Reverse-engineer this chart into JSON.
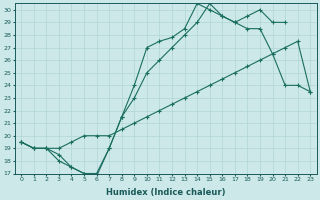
{
  "title": "",
  "xlabel": "Humidex (Indice chaleur)",
  "ylabel": "",
  "bg_color": "#cce8e8",
  "line_color": "#1a6e60",
  "grid_color": "#b0d4d4",
  "xlim": [
    -0.5,
    23.5
  ],
  "ylim": [
    17,
    30.5
  ],
  "yticks": [
    17,
    18,
    19,
    20,
    21,
    22,
    23,
    24,
    25,
    26,
    27,
    28,
    29,
    30
  ],
  "xticks": [
    0,
    1,
    2,
    3,
    4,
    5,
    6,
    7,
    8,
    9,
    10,
    11,
    12,
    13,
    14,
    15,
    16,
    17,
    18,
    19,
    20,
    21,
    22,
    23
  ],
  "line1_x": [
    0,
    1,
    2,
    3,
    4,
    5,
    6,
    7,
    8,
    9,
    10,
    11,
    12,
    13,
    14,
    15,
    16,
    17,
    18,
    19,
    20,
    21
  ],
  "line1_y": [
    19.5,
    19.0,
    19.0,
    18.0,
    17.5,
    17.0,
    16.8,
    19.0,
    21.5,
    24.0,
    27.0,
    27.5,
    27.8,
    28.5,
    30.5,
    30.0,
    29.5,
    29.0,
    29.5,
    30.0,
    29.0,
    29.0
  ],
  "line2_x": [
    0,
    1,
    2,
    3,
    4,
    5,
    6,
    7,
    8,
    9,
    10,
    11,
    12,
    13,
    14,
    15,
    16,
    17,
    18,
    19,
    20,
    21,
    22,
    23
  ],
  "line2_y": [
    19.5,
    19.0,
    19.0,
    18.5,
    17.5,
    17.0,
    17.0,
    19.0,
    21.5,
    23.0,
    25.0,
    26.0,
    27.0,
    28.0,
    29.0,
    30.5,
    29.5,
    29.0,
    28.5,
    28.5,
    26.5,
    24.0,
    24.0,
    23.5
  ],
  "line3_x": [
    0,
    1,
    2,
    3,
    4,
    5,
    6,
    7,
    8,
    9,
    10,
    11,
    12,
    13,
    14,
    15,
    16,
    17,
    18,
    19,
    20,
    21,
    22,
    23
  ],
  "line3_y": [
    19.5,
    19.0,
    19.0,
    19.0,
    19.5,
    20.0,
    20.0,
    20.0,
    20.5,
    21.0,
    21.5,
    22.0,
    22.5,
    23.0,
    23.5,
    24.0,
    24.5,
    25.0,
    25.5,
    26.0,
    26.5,
    27.0,
    27.5,
    23.5
  ]
}
